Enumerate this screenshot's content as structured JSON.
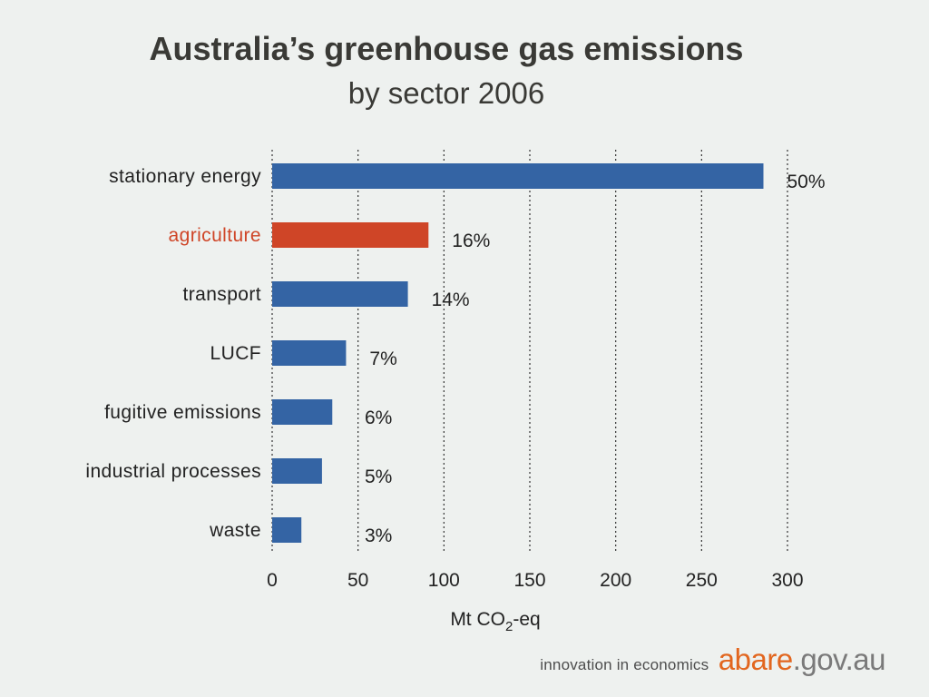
{
  "chart_data": {
    "type": "bar",
    "orientation": "horizontal",
    "title_line1": "Australia’s greenhouse gas emissions",
    "title_line2": "by sector 2006",
    "xlabel": "Mt CO",
    "xlabel_sub": "2",
    "xlabel_suffix": "-eq",
    "xlim": [
      0,
      300
    ],
    "xticks": [
      "0",
      "50",
      "100",
      "150",
      "200",
      "250",
      "300"
    ],
    "grid": "vertical dotted",
    "categories": [
      "stationary energy",
      "agriculture",
      "transport",
      "LUCF",
      "fugitive emissions",
      "industrial processes",
      "waste"
    ],
    "values": [
      286,
      91,
      79,
      43,
      35,
      29,
      17
    ],
    "percent_labels": [
      "50%",
      "16%",
      "14%",
      "7%",
      "6%",
      "5%",
      "3%"
    ],
    "highlight_index": 1,
    "colors": {
      "bar": "#3464a4",
      "highlight": "#cf4527",
      "highlight_text": "#cf4527",
      "text": "#222222",
      "background": "#eef1ef"
    }
  },
  "footer": {
    "tagline": "innovation in economics",
    "brand": "abare",
    "domain": ".gov.au"
  }
}
